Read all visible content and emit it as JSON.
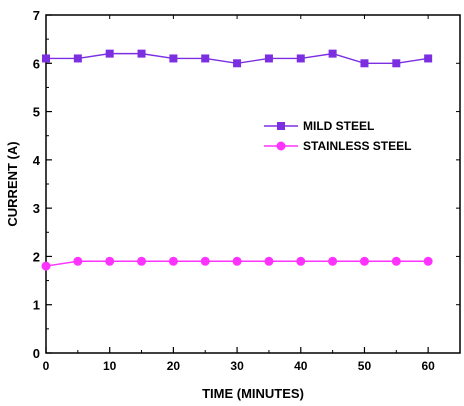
{
  "chart_data": {
    "type": "line",
    "title": "",
    "xlabel": "TIME (MINUTES)",
    "ylabel": "CURRENT (A)",
    "xlim": [
      0,
      65
    ],
    "ylim": [
      0,
      7
    ],
    "x_ticks": [
      "0",
      "10",
      "20",
      "30",
      "40",
      "50",
      "60"
    ],
    "y_ticks": [
      "0",
      "1",
      "2",
      "3",
      "4",
      "5",
      "6",
      "7"
    ],
    "grid": false,
    "legend_position": "right-middle",
    "x": [
      0,
      5,
      10,
      15,
      20,
      25,
      30,
      35,
      40,
      45,
      50,
      55,
      60
    ],
    "series": [
      {
        "name": "MILD STEEL",
        "color": "#7b2fe0",
        "marker": "square",
        "values": [
          6.1,
          6.1,
          6.2,
          6.2,
          6.1,
          6.1,
          6.0,
          6.1,
          6.1,
          6.2,
          6.0,
          6.0,
          6.1
        ]
      },
      {
        "name": "STAINLESS STEEL",
        "color": "#ff33ff",
        "marker": "circle",
        "values": [
          1.8,
          1.9,
          1.9,
          1.9,
          1.9,
          1.9,
          1.9,
          1.9,
          1.9,
          1.9,
          1.9,
          1.9,
          1.9
        ]
      }
    ]
  }
}
